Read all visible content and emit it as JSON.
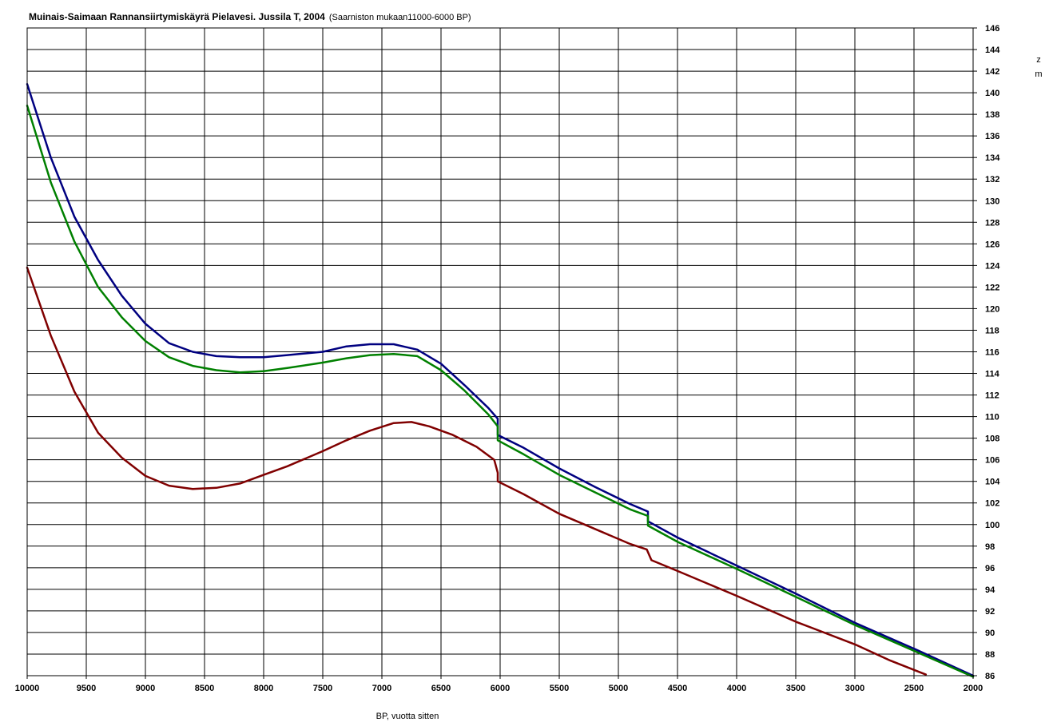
{
  "chart_data": {
    "type": "line",
    "title": "Muinais-Saimaan Rannansiirtymiskäyrä Pielavesi. Jussila T, 2004",
    "subtitle": "(Saarniston mukaan11000-6000 BP)",
    "xlabel": "BP, vuotta sitten",
    "ylabel_top": "z",
    "ylabel_bottom": "m",
    "xlim": [
      10000,
      2000
    ],
    "ylim": [
      86,
      146
    ],
    "x_ticks": [
      10000,
      9500,
      9000,
      8500,
      8000,
      7500,
      7000,
      6500,
      6000,
      5500,
      5000,
      4500,
      4000,
      3500,
      3000,
      2500,
      2000
    ],
    "y_ticks": [
      86,
      88,
      90,
      92,
      94,
      96,
      98,
      100,
      102,
      104,
      106,
      108,
      110,
      112,
      114,
      116,
      118,
      120,
      122,
      124,
      126,
      128,
      130,
      132,
      134,
      136,
      138,
      140,
      142,
      144,
      146
    ],
    "grid": true,
    "series": [
      {
        "color": "#000080",
        "x": [
          10000,
          9800,
          9600,
          9400,
          9200,
          9000,
          8800,
          8600,
          8400,
          8200,
          8000,
          7800,
          7500,
          7300,
          7100,
          6900,
          6700,
          6500,
          6300,
          6100,
          6020,
          6020,
          5800,
          5500,
          5200,
          4900,
          4750,
          4750,
          4500,
          4000,
          3500,
          3000,
          2500,
          2000
        ],
        "y": [
          140.8,
          134,
          128.5,
          124.5,
          121.2,
          118.6,
          116.8,
          116.0,
          115.6,
          115.5,
          115.5,
          115.7,
          116.0,
          116.5,
          116.7,
          116.7,
          116.2,
          114.9,
          112.9,
          110.8,
          109.8,
          108.3,
          107.1,
          105.2,
          103.5,
          101.9,
          101.2,
          100.3,
          98.8,
          96.2,
          93.6,
          90.9,
          88.5,
          86.0
        ]
      },
      {
        "color": "#008000",
        "x": [
          10000,
          9800,
          9600,
          9400,
          9200,
          9000,
          8800,
          8600,
          8400,
          8200,
          8000,
          7800,
          7500,
          7300,
          7100,
          6900,
          6700,
          6500,
          6300,
          6100,
          6020,
          6020,
          5800,
          5500,
          5200,
          4900,
          4750,
          4750,
          4500,
          4000,
          3500,
          3000,
          2500,
          2000
        ],
        "y": [
          138.8,
          131.7,
          126.2,
          122.0,
          119.2,
          117.0,
          115.5,
          114.7,
          114.3,
          114.1,
          114.2,
          114.5,
          115.0,
          115.4,
          115.7,
          115.8,
          115.6,
          114.3,
          112.4,
          110.2,
          109.1,
          107.8,
          106.5,
          104.6,
          103.0,
          101.4,
          100.8,
          99.9,
          98.4,
          95.9,
          93.3,
          90.7,
          88.3,
          85.9
        ]
      },
      {
        "color": "#800000",
        "x": [
          10000,
          9800,
          9600,
          9400,
          9200,
          9000,
          8800,
          8600,
          8400,
          8200,
          8000,
          7800,
          7500,
          7300,
          7100,
          6900,
          6750,
          6600,
          6400,
          6200,
          6050,
          6020,
          6020,
          5800,
          5500,
          5200,
          4900,
          4760,
          4720,
          4500,
          4000,
          3500,
          3000,
          2700,
          2400
        ],
        "y": [
          123.8,
          117.5,
          112.3,
          108.5,
          106.2,
          104.5,
          103.6,
          103.3,
          103.4,
          103.8,
          104.6,
          105.4,
          106.8,
          107.8,
          108.7,
          109.4,
          109.5,
          109.1,
          108.3,
          107.2,
          106.0,
          104.8,
          104.0,
          102.8,
          101.0,
          99.6,
          98.2,
          97.7,
          96.7,
          95.7,
          93.4,
          91.0,
          88.9,
          87.4,
          86.1
        ]
      }
    ]
  }
}
